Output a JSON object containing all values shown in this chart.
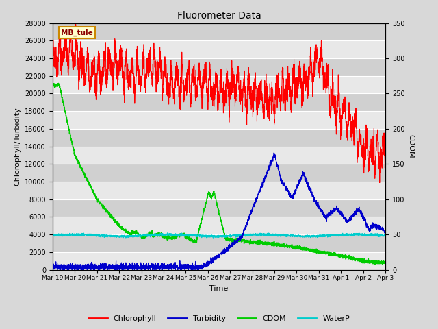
{
  "title": "Fluorometer Data",
  "xlabel": "Time",
  "ylabel_left": "Chlorophyll/Turbidity",
  "ylabel_right": "CDOM",
  "ylim_left": [
    0,
    28000
  ],
  "ylim_right": [
    0,
    350
  ],
  "yticks_left": [
    0,
    2000,
    4000,
    6000,
    8000,
    10000,
    12000,
    14000,
    16000,
    18000,
    20000,
    22000,
    24000,
    26000,
    28000
  ],
  "yticks_right": [
    0,
    50,
    100,
    150,
    200,
    250,
    300,
    350
  ],
  "xtick_labels": [
    "Mar 19",
    "Mar 20",
    "Mar 21",
    "Mar 22",
    "Mar 23",
    "Mar 24",
    "Mar 25",
    "Mar 26",
    "Mar 27",
    "Mar 28",
    "Mar 29",
    "Mar 30",
    "Mar 31",
    "Apr 1",
    "Apr 2",
    "Apr 3"
  ],
  "colors": {
    "chlorophyll": "#ff0000",
    "turbidity": "#0000cc",
    "cdom": "#00cc00",
    "waterp": "#00cccc",
    "fig_bg": "#d8d8d8",
    "plot_bg_light": "#e8e8e8",
    "plot_bg_dark": "#d0d0d0",
    "grid": "#ffffff"
  },
  "station_label": "MB_tule",
  "legend_entries": [
    "Chlorophyll",
    "Turbidity",
    "CDOM",
    "WaterP"
  ]
}
